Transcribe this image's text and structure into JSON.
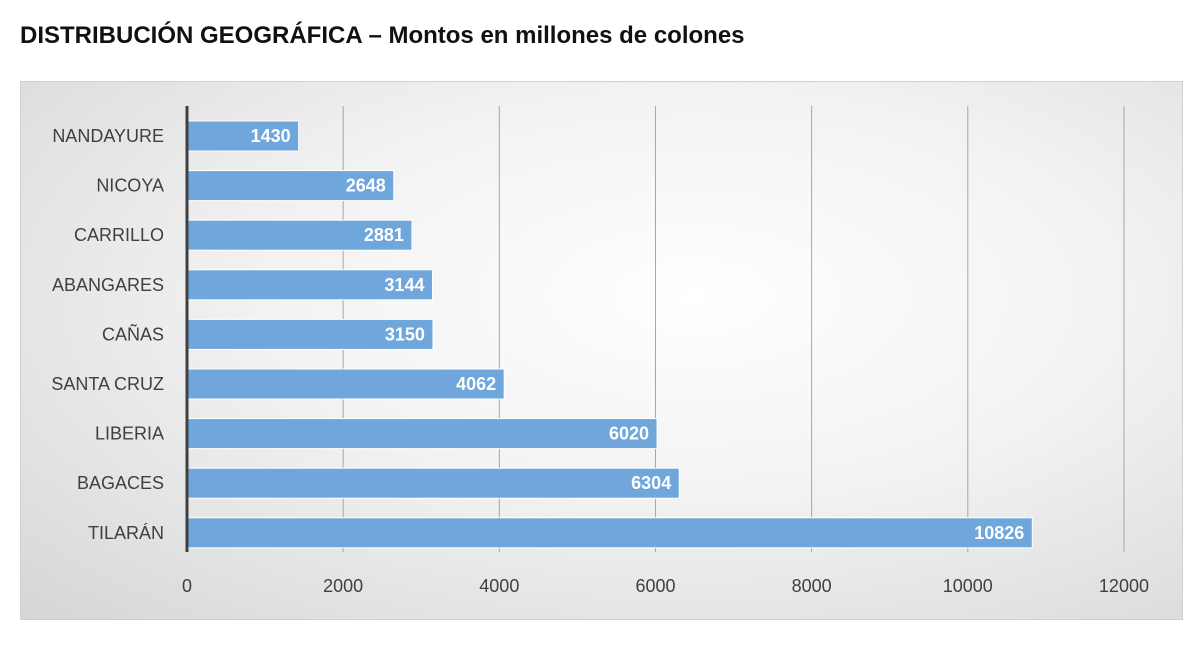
{
  "chart_data": {
    "type": "bar",
    "orientation": "horizontal",
    "title": "DISTRIBUCIÓN GEOGRÁFICA – Montos en millones de colones",
    "categories": [
      "NANDAYURE",
      "NICOYA",
      "CARRILLO",
      "ABANGARES",
      "CAÑAS",
      "SANTA CRUZ",
      "LIBERIA",
      "BAGACES",
      "TILARÁN"
    ],
    "values": [
      1430,
      2648,
      2881,
      3144,
      3150,
      4062,
      6020,
      6304,
      10826
    ],
    "data_labels": [
      "1430",
      "2648",
      "2881",
      "3144",
      "3150",
      "4062",
      "6020",
      "6304",
      "10826"
    ],
    "xlim": [
      0,
      12000
    ],
    "x_ticks": [
      0,
      2000,
      4000,
      6000,
      8000,
      10000,
      12000
    ],
    "x_tick_labels": [
      "0",
      "2000",
      "4000",
      "6000",
      "8000",
      "10000",
      "12000"
    ],
    "xlabel": "",
    "ylabel": "",
    "grid": true,
    "legend": "none",
    "colors": {
      "bar": "#6fa6db",
      "bar_edge": "#ffffff",
      "gridline": "#a6a6a6",
      "axis": "#404040",
      "data_label": "#ffffff",
      "category_label": "#404040"
    }
  }
}
